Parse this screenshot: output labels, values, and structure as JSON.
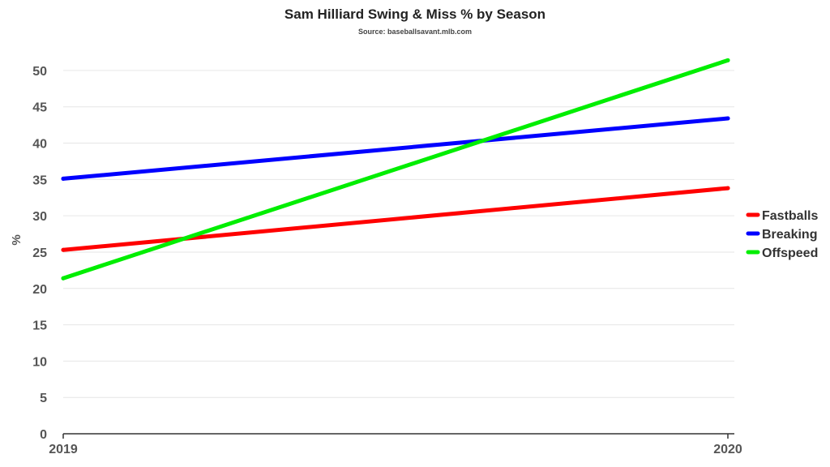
{
  "chart_data": {
    "type": "line",
    "title": "Sam Hilliard Swing & Miss % by Season",
    "subtitle": "Source: baseballsavant.mlb.com",
    "xlabel": "",
    "ylabel": "%",
    "x": [
      "2019",
      "2020"
    ],
    "ylim": [
      0,
      53
    ],
    "yticks": [
      0,
      5,
      10,
      15,
      20,
      25,
      30,
      35,
      40,
      45,
      50
    ],
    "grid": true,
    "legend": "right",
    "series": [
      {
        "name": "Fastballs",
        "color": "#ff0000",
        "values": [
          25.3,
          33.8
        ]
      },
      {
        "name": "Breaking",
        "color": "#0000ff",
        "values": [
          35.1,
          43.4
        ]
      },
      {
        "name": "Offspeed",
        "color": "#00ee00",
        "values": [
          21.4,
          51.4
        ]
      }
    ]
  }
}
